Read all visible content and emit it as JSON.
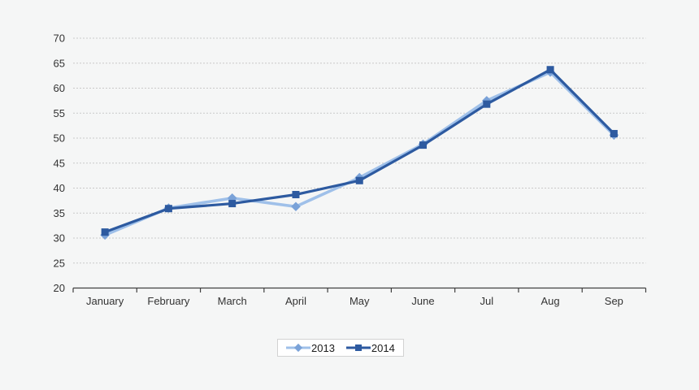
{
  "chart_data": {
    "type": "line",
    "title": "",
    "xlabel": "",
    "ylabel": "",
    "categories": [
      "January",
      "February",
      "March",
      "April",
      "May",
      "June",
      "Jul",
      "Aug",
      "Sep"
    ],
    "series": [
      {
        "name": "2013",
        "marker": "diamond",
        "line_color": "#9fc0e9",
        "marker_color": "#7aa2d8",
        "values": [
          30.6,
          36.0,
          38.0,
          36.3,
          42.1,
          48.8,
          57.5,
          63.2,
          50.6
        ]
      },
      {
        "name": "2014",
        "marker": "square",
        "line_color": "#2d5aa0",
        "marker_color": "#2d5aa0",
        "values": [
          31.2,
          35.9,
          36.9,
          38.7,
          41.5,
          48.6,
          56.8,
          63.7,
          50.9
        ]
      }
    ],
    "ylim": [
      20,
      70
    ],
    "ytick_step": 5,
    "grid": "horizontal-dashed",
    "legend_position": "bottom-center",
    "colors": {
      "background": "#f5f6f6",
      "gridline": "#c9c9c9",
      "axis": "#404040",
      "tick_label": "#333333",
      "legend_border": "#d2d2d2",
      "legend_background": "#ffffff",
      "legend_text": "#1a1a1a"
    }
  }
}
